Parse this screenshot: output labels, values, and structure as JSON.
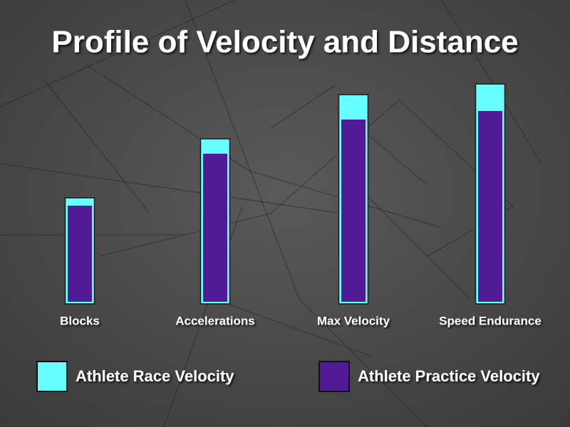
{
  "chart_data": {
    "type": "bar",
    "title": "Profile of Velocity and Distance",
    "categories": [
      "Blocks",
      "Accelerations",
      "Max Velocity",
      "Speed Endurance"
    ],
    "series": [
      {
        "name": "Athlete Race Velocity",
        "color": "#66ffff",
        "values": [
          149,
          232,
          294,
          309
        ]
      },
      {
        "name": "Athlete Practice Velocity",
        "color": "#4f1a94",
        "values": [
          138,
          211,
          259,
          271
        ]
      }
    ],
    "ylim": [
      0,
      310
    ]
  }
}
